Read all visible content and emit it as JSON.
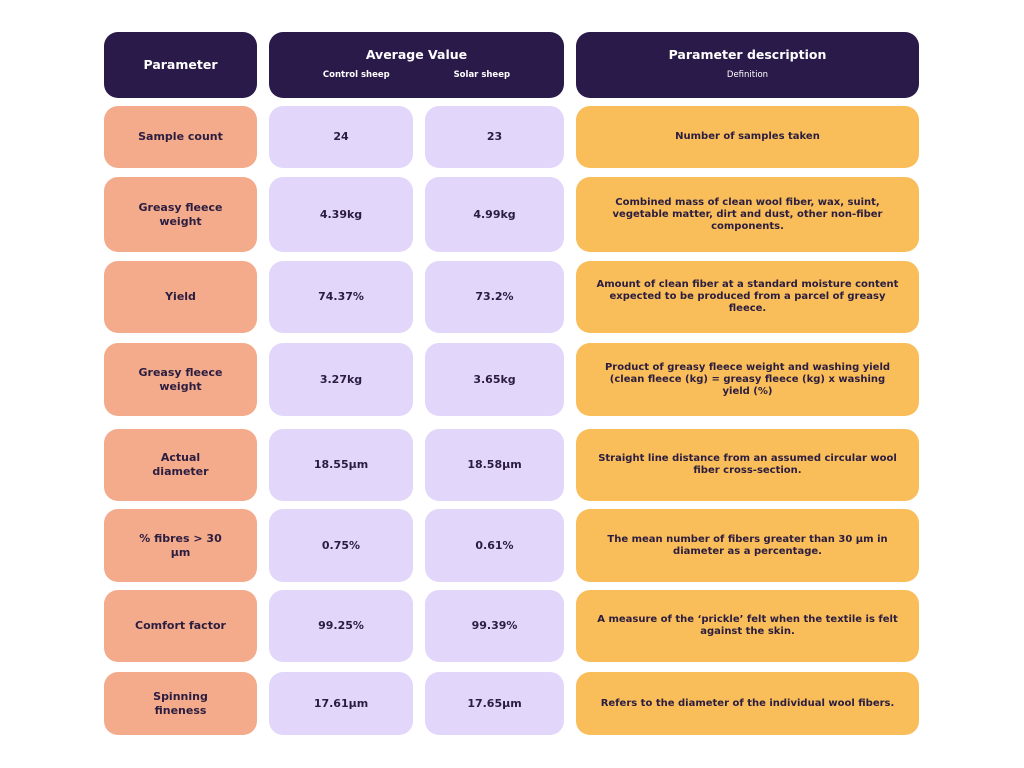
{
  "table": {
    "header": {
      "parameter": "Parameter",
      "average_value": "Average Value",
      "control": "Control sheep",
      "solar": "Solar sheep",
      "description": "Parameter description",
      "definition": "Definition"
    },
    "rows": [
      [
        "Sample count",
        "24",
        "23",
        "Number of samples taken"
      ],
      [
        "Greasy fleece weight",
        "4.39kg",
        "4.99kg",
        "Combined mass of clean wool fiber, wax, suint, vegetable matter, dirt and dust, other non-fiber components."
      ],
      [
        "Yield",
        "74.37%",
        "73.2%",
        "Amount of clean fiber at a standard moisture content expected to be produced from a parcel of greasy fleece."
      ],
      [
        "Greasy fleece weight",
        "3.27kg",
        "3.65kg",
        "Product of greasy fleece weight and washing yield (clean fleece (kg) = greasy fleece (kg) x washing yield (%)"
      ],
      [
        "Actual diameter",
        "18.55µm",
        "18.58µm",
        "Straight line distance from an assumed circular wool fiber cross-section."
      ],
      [
        "% fibres > 30 µm",
        "0.75%",
        "0.61%",
        "The mean number of fibers greater than 30 µm in diameter as a percentage."
      ],
      [
        "Comfort factor",
        "99.25%",
        "99.39%",
        "A measure of the ‘prickle’ felt when the textile is felt against the skin."
      ],
      [
        "Spinning fineness",
        "17.61µm",
        "17.65µm",
        "Refers to the diameter of the individual wool fibers."
      ]
    ]
  }
}
